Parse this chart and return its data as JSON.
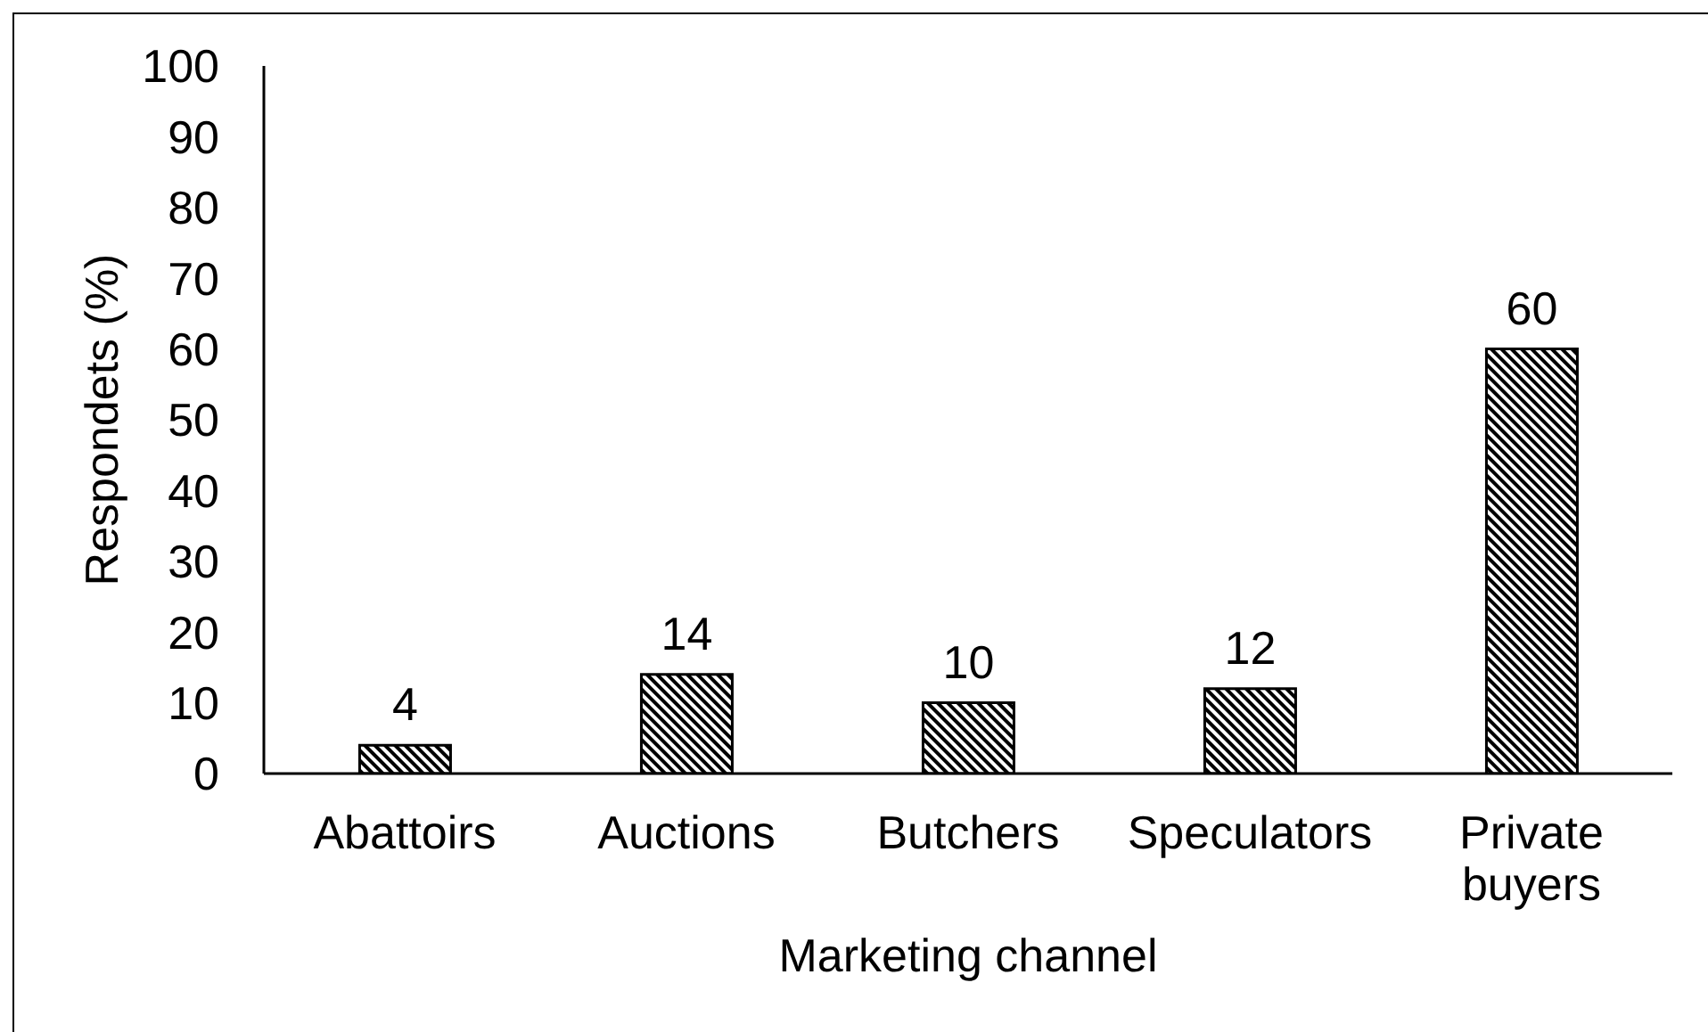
{
  "chart_data": {
    "type": "bar",
    "xlabel": "Marketing channel",
    "ylabel": "Respondets (%)",
    "categories": [
      "Abattoirs",
      "Auctions",
      "Butchers",
      "Speculators",
      "Private buyers"
    ],
    "values": [
      4,
      14,
      10,
      12,
      60
    ],
    "color": "#000000",
    "ylim": [
      0,
      100
    ],
    "yticks": [
      0,
      10,
      20,
      30,
      40,
      50,
      60,
      70,
      80,
      90,
      100
    ],
    "data_labels": true
  }
}
